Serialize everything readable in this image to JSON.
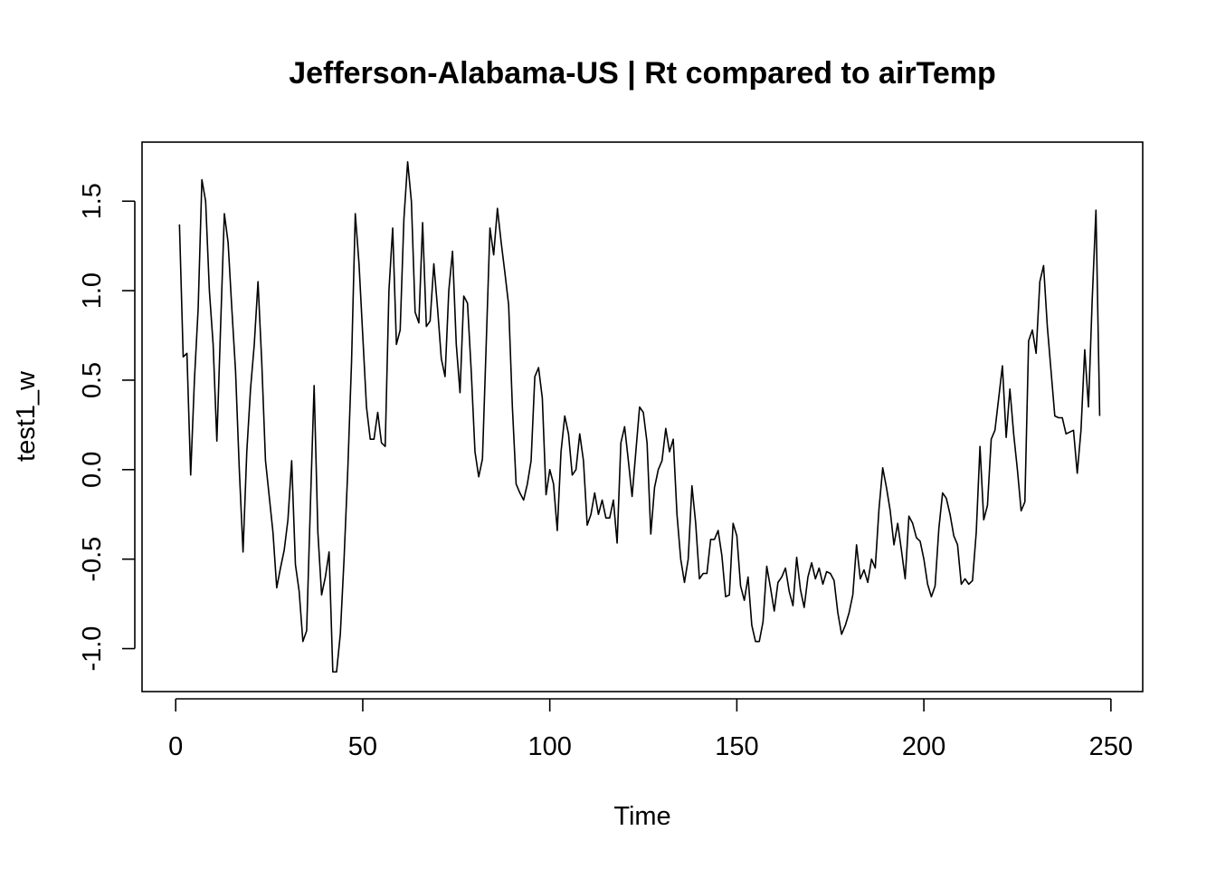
{
  "chart_data": {
    "type": "line",
    "title": "Jefferson-Alabama-US | Rt compared to airTemp",
    "xlabel": "Time",
    "ylabel": "test1_w",
    "xlim": [
      -9,
      258.5
    ],
    "ylim": [
      -1.24,
      1.83
    ],
    "xticks": [
      0,
      50,
      100,
      150,
      200,
      250
    ],
    "xtick_labels": [
      "0",
      "50",
      "100",
      "150",
      "200",
      "250"
    ],
    "yticks": [
      -1.0,
      -0.5,
      0.0,
      0.5,
      1.0,
      1.5
    ],
    "ytick_labels": [
      "-1.0",
      "-0.5",
      "0.0",
      "0.5",
      "1.0",
      "1.5"
    ],
    "grid": false,
    "legend": "none",
    "x_start": 1,
    "x_step": 1,
    "values": [
      1.37,
      0.63,
      0.65,
      -0.03,
      0.5,
      0.9,
      1.62,
      1.5,
      1.0,
      0.7,
      0.16,
      0.8,
      1.43,
      1.27,
      0.9,
      0.55,
      0.0,
      -0.46,
      0.1,
      0.45,
      0.7,
      1.05,
      0.6,
      0.05,
      -0.15,
      -0.35,
      -0.66,
      -0.55,
      -0.45,
      -0.28,
      0.05,
      -0.53,
      -0.68,
      -0.96,
      -0.9,
      -0.2,
      0.47,
      -0.35,
      -0.7,
      -0.6,
      -0.46,
      -1.13,
      -1.13,
      -0.92,
      -0.5,
      0.0,
      0.6,
      1.43,
      1.15,
      0.75,
      0.35,
      0.17,
      0.17,
      0.32,
      0.15,
      0.13,
      1.0,
      1.35,
      0.7,
      0.78,
      1.4,
      1.72,
      1.5,
      0.88,
      0.82,
      1.38,
      0.8,
      0.83,
      1.15,
      0.9,
      0.62,
      0.52,
      1.0,
      1.22,
      0.7,
      0.43,
      0.97,
      0.93,
      0.55,
      0.1,
      -0.04,
      0.06,
      0.7,
      1.35,
      1.2,
      1.46,
      1.27,
      1.1,
      0.92,
      0.35,
      -0.08,
      -0.13,
      -0.17,
      -0.08,
      0.05,
      0.52,
      0.57,
      0.4,
      -0.14,
      0.0,
      -0.08,
      -0.34,
      0.1,
      0.3,
      0.2,
      -0.03,
      0.0,
      0.2,
      0.05,
      -0.31,
      -0.25,
      -0.13,
      -0.25,
      -0.17,
      -0.27,
      -0.27,
      -0.17,
      -0.41,
      0.15,
      0.24,
      0.05,
      -0.15,
      0.1,
      0.35,
      0.32,
      0.15,
      -0.36,
      -0.1,
      0.0,
      0.05,
      0.23,
      0.1,
      0.17,
      -0.25,
      -0.5,
      -0.63,
      -0.5,
      -0.09,
      -0.3,
      -0.61,
      -0.58,
      -0.58,
      -0.39,
      -0.39,
      -0.34,
      -0.48,
      -0.71,
      -0.7,
      -0.3,
      -0.37,
      -0.65,
      -0.73,
      -0.6,
      -0.87,
      -0.96,
      -0.96,
      -0.85,
      -0.54,
      -0.66,
      -0.79,
      -0.63,
      -0.6,
      -0.55,
      -0.68,
      -0.76,
      -0.49,
      -0.67,
      -0.77,
      -0.6,
      -0.52,
      -0.61,
      -0.55,
      -0.64,
      -0.57,
      -0.58,
      -0.62,
      -0.8,
      -0.92,
      -0.87,
      -0.8,
      -0.7,
      -0.42,
      -0.61,
      -0.56,
      -0.63,
      -0.5,
      -0.55,
      -0.22,
      0.01,
      -0.1,
      -0.23,
      -0.42,
      -0.3,
      -0.45,
      -0.61,
      -0.26,
      -0.3,
      -0.38,
      -0.4,
      -0.5,
      -0.64,
      -0.71,
      -0.65,
      -0.33,
      -0.13,
      -0.16,
      -0.25,
      -0.37,
      -0.42,
      -0.64,
      -0.61,
      -0.64,
      -0.62,
      -0.35,
      0.13,
      -0.28,
      -0.2,
      0.17,
      0.22,
      0.4,
      0.58,
      0.18,
      0.45,
      0.2,
      0.0,
      -0.23,
      -0.18,
      0.72,
      0.78,
      0.65,
      1.05,
      1.14,
      0.8,
      0.55,
      0.3,
      0.29,
      0.29,
      0.2,
      0.21,
      0.22,
      -0.02,
      0.22,
      0.67,
      0.35,
      0.95,
      1.45,
      0.3
    ]
  }
}
